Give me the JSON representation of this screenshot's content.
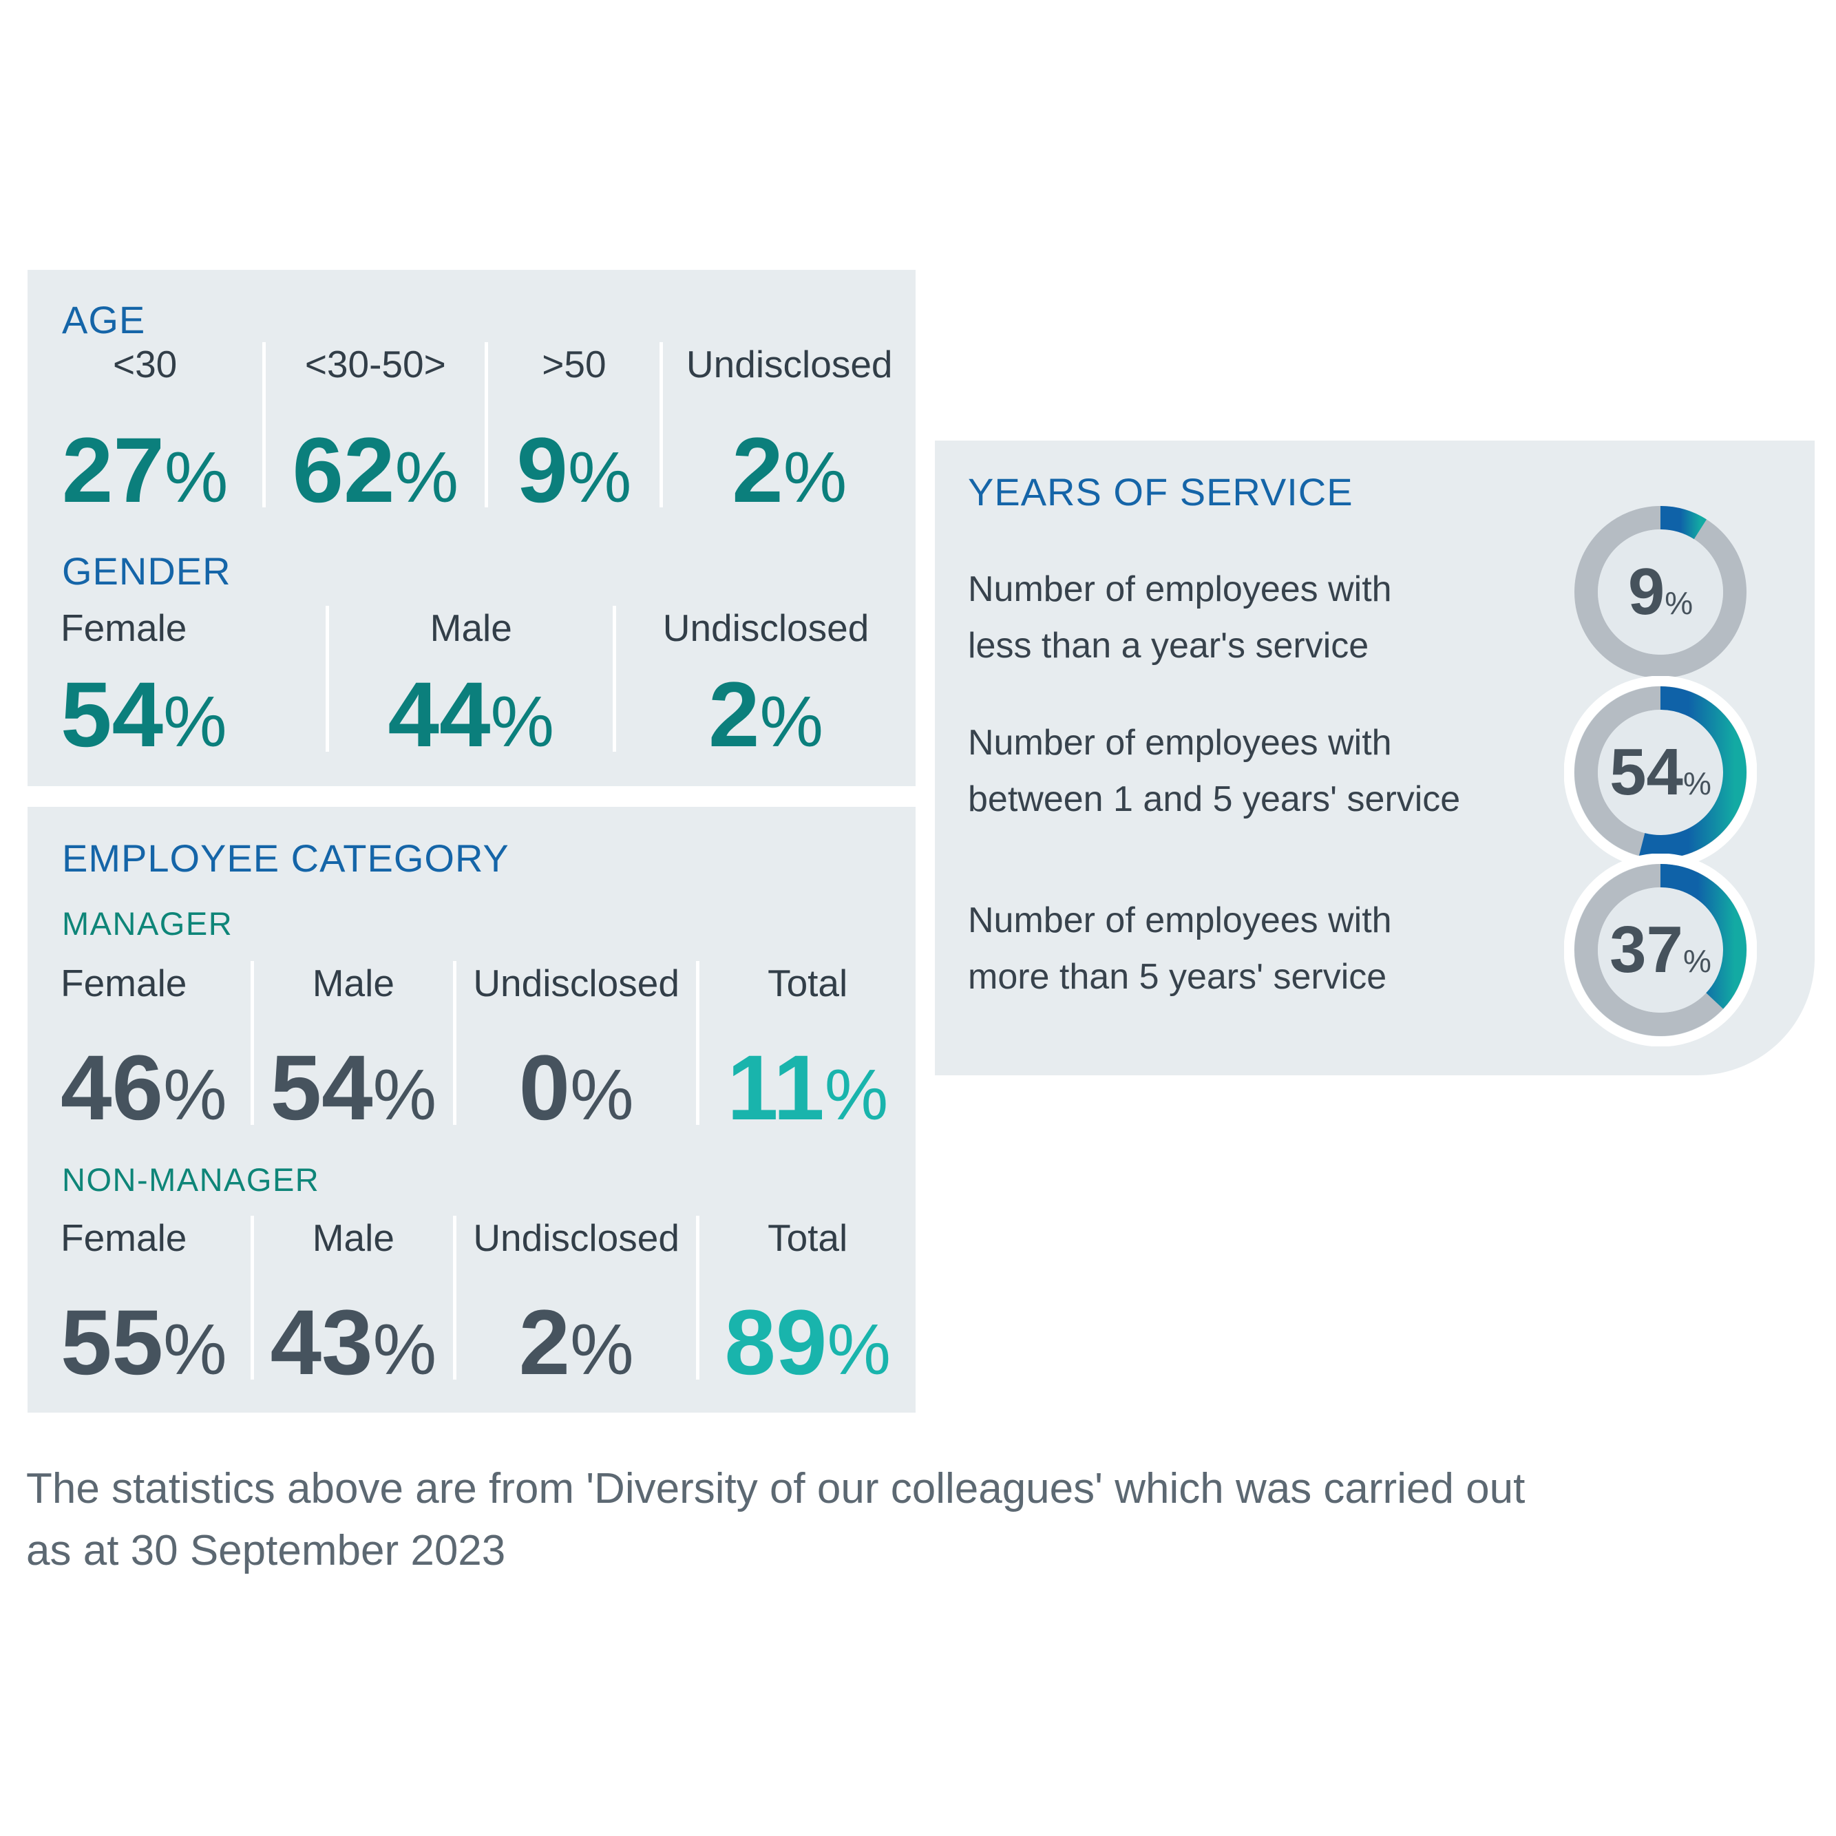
{
  "unit": "%",
  "colors": {
    "page_bg": "#ffffff",
    "panel_bg": "#e7ecef",
    "heading_blue": "#1565a8",
    "teal": "#0b7f7c",
    "teal_green": "#0e8578",
    "teal_bright": "#19b4ac",
    "slate": "#46535e",
    "label_dark": "#323e48",
    "text_dark": "#37424c",
    "note_gray": "#5c6872",
    "divider": "#ffffff",
    "donut_track": "#b5bcc3",
    "donut_inner": "#e3e9ed",
    "donut_number": "#46525c",
    "grad_blue": "#0f62a8",
    "grad_teal": "#13aaa3"
  },
  "age": {
    "title": "AGE",
    "items": [
      {
        "label": "<30",
        "value": "27"
      },
      {
        "label": "<30-50>",
        "value": "62"
      },
      {
        "label": ">50",
        "value": "9"
      },
      {
        "label": "Undisclosed",
        "value": "2"
      }
    ]
  },
  "gender": {
    "title": "GENDER",
    "items": [
      {
        "label": "Female",
        "value": "54"
      },
      {
        "label": "Male",
        "value": "44"
      },
      {
        "label": "Undisclosed",
        "value": "2"
      }
    ]
  },
  "employee_category": {
    "title": "EMPLOYEE CATEGORY",
    "manager": {
      "title": "MANAGER",
      "items": [
        {
          "label": "Female",
          "value": "46"
        },
        {
          "label": "Male",
          "value": "54"
        },
        {
          "label": "Undisclosed",
          "value": "0"
        },
        {
          "label": "Total",
          "value": "11"
        }
      ]
    },
    "non_manager": {
      "title": "NON-MANAGER",
      "items": [
        {
          "label": "Female",
          "value": "55"
        },
        {
          "label": "Male",
          "value": "43"
        },
        {
          "label": "Undisclosed",
          "value": "2"
        },
        {
          "label": "Total",
          "value": "89"
        }
      ]
    }
  },
  "years_of_service": {
    "title": "YEARS OF SERVICE",
    "rows": [
      {
        "line1": "Number of employees with",
        "line2": "less than a year's service",
        "value": 9
      },
      {
        "line1": "Number of employees with",
        "line2": "between 1 and 5 years' service",
        "value": 54
      },
      {
        "line1": "Number of employees with",
        "line2": "more than 5 years' service",
        "value": 37
      }
    ]
  },
  "note": {
    "line1": "The statistics above are from 'Diversity of our colleagues' which was carried out",
    "line2": "as at 30 September 2023"
  },
  "chart_data": [
    {
      "type": "table",
      "title": "AGE",
      "categories": [
        "<30",
        "<30-50>",
        ">50",
        "Undisclosed"
      ],
      "values": [
        27,
        62,
        9,
        2
      ],
      "unit": "%"
    },
    {
      "type": "table",
      "title": "GENDER",
      "categories": [
        "Female",
        "Male",
        "Undisclosed"
      ],
      "values": [
        54,
        44,
        2
      ],
      "unit": "%"
    },
    {
      "type": "table",
      "title": "EMPLOYEE CATEGORY - MANAGER",
      "categories": [
        "Female",
        "Male",
        "Undisclosed",
        "Total"
      ],
      "values": [
        46,
        54,
        0,
        11
      ],
      "unit": "%"
    },
    {
      "type": "table",
      "title": "EMPLOYEE CATEGORY - NON-MANAGER",
      "categories": [
        "Female",
        "Male",
        "Undisclosed",
        "Total"
      ],
      "values": [
        55,
        43,
        2,
        89
      ],
      "unit": "%"
    },
    {
      "type": "pie",
      "title": "YEARS OF SERVICE",
      "categories": [
        "less than a year's service",
        "between 1 and 5 years' service",
        "more than 5 years' service"
      ],
      "values": [
        9,
        54,
        37
      ],
      "unit": "%",
      "donut": true,
      "arc_start": "12 o'clock clockwise",
      "arc_colors": [
        "#0f62a8",
        "#13aaa3"
      ],
      "track_color": "#b5bcc3"
    }
  ]
}
